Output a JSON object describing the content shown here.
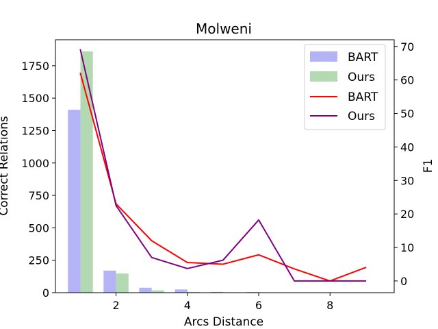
{
  "chart_data": {
    "type": "bar+line",
    "title": "Molweni",
    "xlabel": "Arcs Distance",
    "ylabel_left": "Correct Relations",
    "ylabel_right": "F1",
    "xlim": [
      0.3,
      9.8
    ],
    "ylim_left": [
      0,
      1950
    ],
    "ylim_right": [
      -3.5,
      72
    ],
    "x_ticks": [
      2,
      4,
      6,
      8
    ],
    "y_left_ticks": [
      0,
      250,
      500,
      750,
      1000,
      1250,
      1500,
      1750
    ],
    "y_right_ticks": [
      0,
      10,
      20,
      30,
      40,
      50,
      60,
      70
    ],
    "bar_series": [
      {
        "name": "BART",
        "color": "#b3b3f5",
        "x": [
          1,
          2,
          3,
          4,
          5,
          6
        ],
        "values": [
          1410,
          170,
          38,
          25,
          6,
          5
        ]
      },
      {
        "name": "Ours",
        "color": "#b3d9b3",
        "x": [
          1,
          2,
          3,
          4,
          5,
          6
        ],
        "values": [
          1860,
          148,
          18,
          6,
          3,
          2
        ]
      }
    ],
    "line_series": [
      {
        "name": "BART",
        "color": "#ff0000",
        "x": [
          1,
          2,
          3,
          4,
          5,
          6,
          7,
          8,
          9
        ],
        "values": [
          62,
          23,
          12,
          5.5,
          5,
          7.8,
          3.6,
          0,
          4
        ]
      },
      {
        "name": "Ours",
        "color": "#800080",
        "x": [
          1,
          2,
          3,
          4,
          5,
          6,
          7,
          8,
          9
        ],
        "values": [
          69,
          22.5,
          7,
          3.7,
          6.2,
          18.2,
          0,
          0,
          0
        ]
      }
    ],
    "legend_position": "upper-right",
    "grid": false
  }
}
